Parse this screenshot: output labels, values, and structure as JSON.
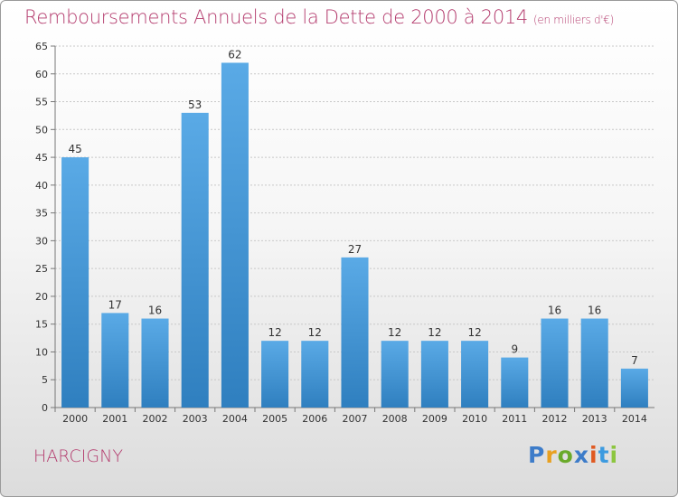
{
  "title": "Remboursements Annuels de la Dette de 2000 à 2014",
  "unit_note": "(en milliers d'€)",
  "commune": "HARCIGNY",
  "brand": "Proxiti",
  "colors": {
    "accent": "#b43c6e",
    "bar_top": "#5aaae6",
    "bar_bottom": "#2f7fbf"
  },
  "chart_data": {
    "type": "bar",
    "title": "Remboursements Annuels de la Dette de 2000 à 2014",
    "categories": [
      "2000",
      "2001",
      "2002",
      "2003",
      "2004",
      "2005",
      "2006",
      "2007",
      "2008",
      "2009",
      "2010",
      "2011",
      "2012",
      "2013",
      "2014"
    ],
    "values": [
      45,
      17,
      16,
      53,
      62,
      12,
      12,
      27,
      12,
      12,
      12,
      9,
      16,
      16,
      7
    ],
    "ylim": [
      0,
      65
    ],
    "yticks": [
      0,
      5,
      10,
      15,
      20,
      25,
      30,
      35,
      40,
      45,
      50,
      55,
      60,
      65
    ],
    "xlabel": "",
    "ylabel": "",
    "grid": true
  }
}
